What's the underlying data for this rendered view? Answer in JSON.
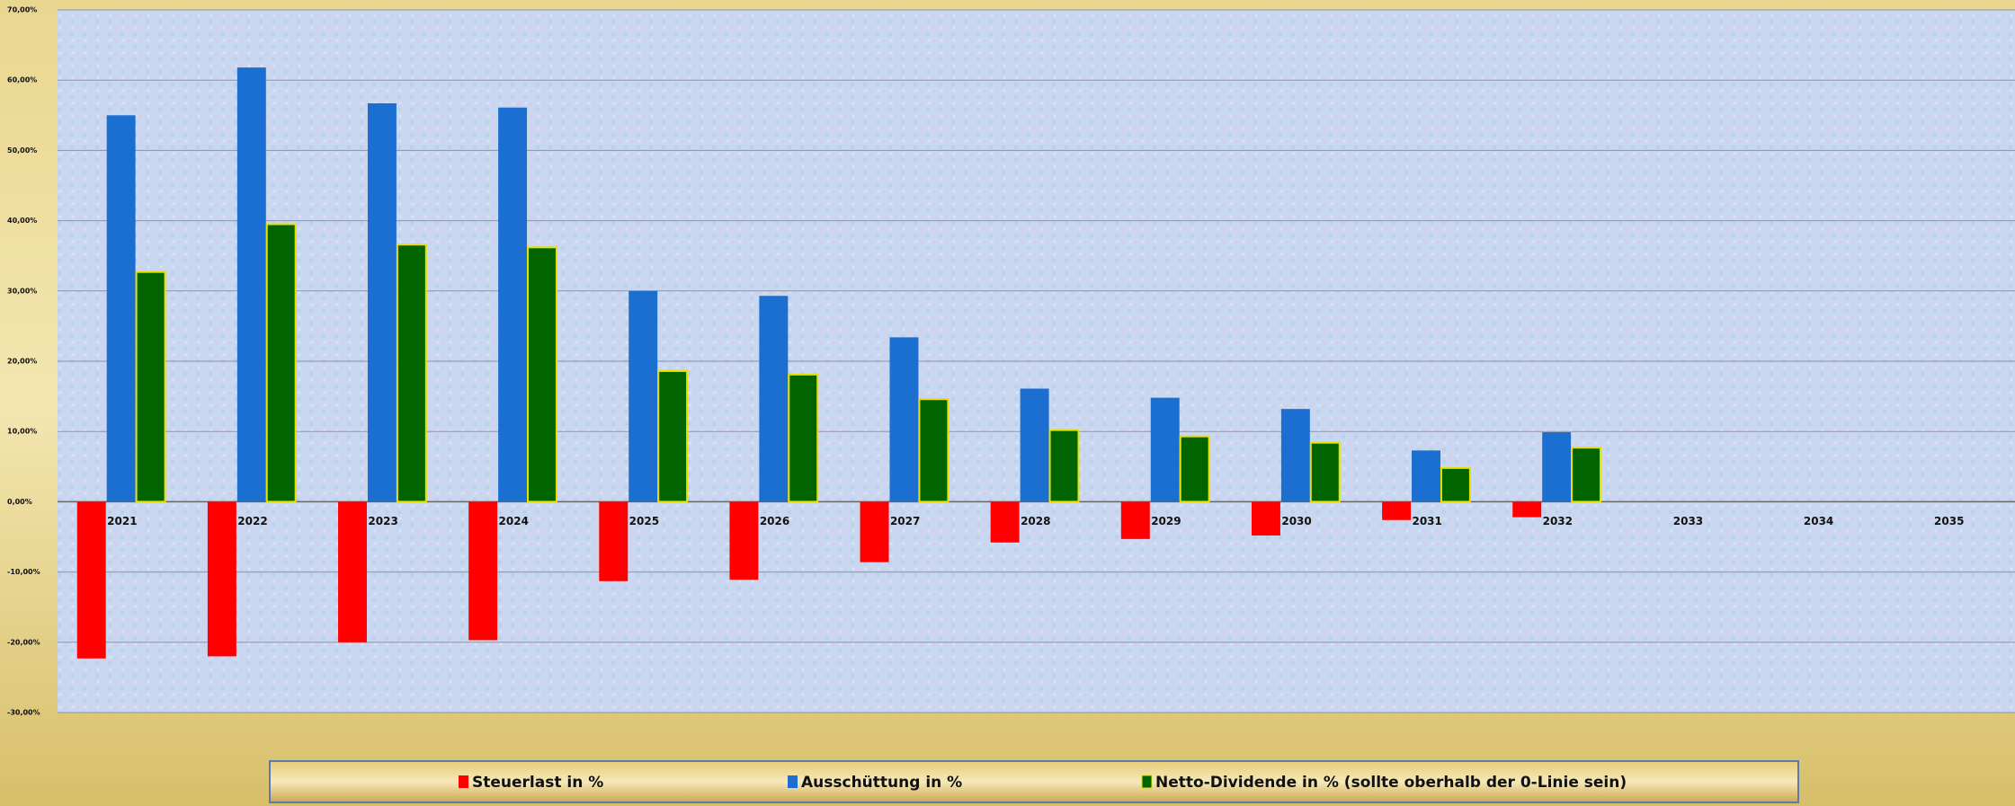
{
  "chart_data": {
    "type": "bar",
    "categories": [
      "2021",
      "2022",
      "2023",
      "2024",
      "2025",
      "2026",
      "2027",
      "2028",
      "2029",
      "2030",
      "2031",
      "2032",
      "2033",
      "2034",
      "2035"
    ],
    "series": [
      {
        "name": "Steuerlast in %",
        "color": "#ff0000",
        "values": [
          -22.3,
          -22,
          -20,
          -19.7,
          -11.3,
          -11.1,
          -8.6,
          -5.8,
          -5.3,
          -4.8,
          -2.6,
          -2.2,
          null,
          null,
          null
        ]
      },
      {
        "name": "Ausschüttung in %",
        "color": "#1a6fd0",
        "values": [
          55,
          61.8,
          56.7,
          56.1,
          30,
          29.3,
          23.4,
          16.1,
          14.8,
          13.2,
          7.3,
          9.9,
          null,
          null,
          null
        ]
      },
      {
        "name": "Netto-Dividende in % (sollte oberhalb der 0-Linie sein)",
        "color": "#006400",
        "values": [
          32.7,
          39.5,
          36.6,
          36.2,
          18.6,
          18.1,
          14.6,
          10.2,
          9.3,
          8.4,
          4.8,
          7.7,
          null,
          null,
          null
        ]
      }
    ],
    "ylim": [
      -30,
      70
    ],
    "yticks": [
      {
        "value": -30,
        "label": "-30,00%"
      },
      {
        "value": -20,
        "label": "-20,00%"
      },
      {
        "value": -10,
        "label": "-10,00%"
      },
      {
        "value": 0,
        "label": "0,00%"
      },
      {
        "value": 10,
        "label": "10,00%"
      },
      {
        "value": 20,
        "label": "20,00%"
      },
      {
        "value": 30,
        "label": "30,00%"
      },
      {
        "value": 40,
        "label": "40,00%"
      },
      {
        "value": 50,
        "label": "50,00%"
      },
      {
        "value": 60,
        "label": "60,00%"
      },
      {
        "value": 70,
        "label": "70,00%"
      }
    ],
    "grid": true,
    "legend": "bottom"
  }
}
